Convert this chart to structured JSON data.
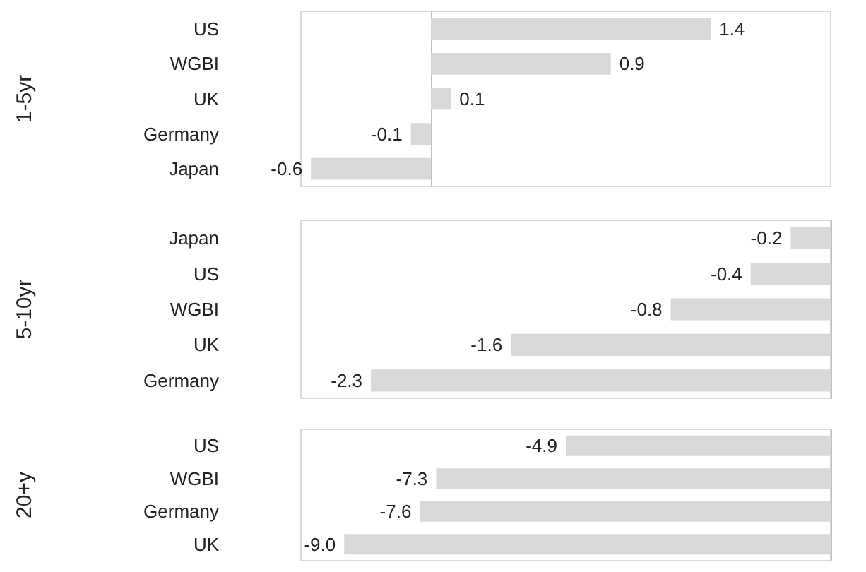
{
  "chart_data": [
    {
      "type": "bar",
      "orientation": "horizontal",
      "ylabel": "1-5yr",
      "categories": [
        "US",
        "WGBI",
        "UK",
        "Germany",
        "Japan"
      ],
      "values": [
        1.4,
        0.9,
        0.1,
        -0.1,
        -0.6
      ],
      "color": "#d9d9d9",
      "data_labels": true,
      "xlim": [
        -0.65,
        2.0
      ],
      "tick_labels": "y",
      "grid": false
    },
    {
      "type": "bar",
      "orientation": "horizontal",
      "ylabel": "5-10yr",
      "categories": [
        "Japan",
        "US",
        "WGBI",
        "UK",
        "Germany"
      ],
      "values": [
        -0.2,
        -0.4,
        -0.8,
        -1.6,
        -2.3
      ],
      "color": "#d9d9d9",
      "data_labels": true,
      "xlim": [
        -2.65,
        0
      ],
      "tick_labels": "y",
      "grid": false
    },
    {
      "type": "bar",
      "orientation": "horizontal",
      "ylabel": "20+y",
      "categories": [
        "US",
        "WGBI",
        "Germany",
        "UK"
      ],
      "values": [
        -4.9,
        -7.3,
        -7.6,
        -9.0
      ],
      "value_labels": [
        "-4.9",
        "-7.3",
        "-7.6",
        "-9.0"
      ],
      "color": "#d9d9d9",
      "xlim": [
        -9.8,
        0
      ],
      "tick_labels": "y",
      "grid": false
    }
  ]
}
